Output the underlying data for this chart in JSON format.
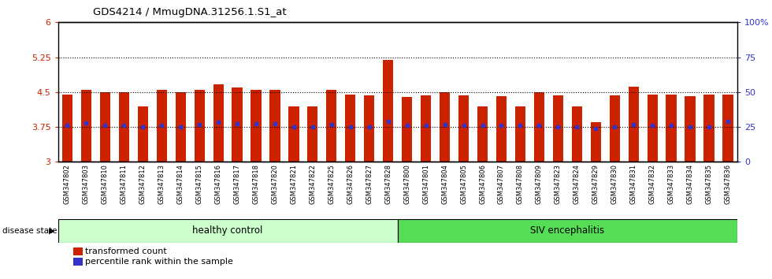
{
  "title": "GDS4214 / MmugDNA.31256.1.S1_at",
  "samples": [
    "GSM347802",
    "GSM347803",
    "GSM347810",
    "GSM347811",
    "GSM347812",
    "GSM347813",
    "GSM347814",
    "GSM347815",
    "GSM347816",
    "GSM347817",
    "GSM347818",
    "GSM347820",
    "GSM347821",
    "GSM347822",
    "GSM347825",
    "GSM347826",
    "GSM347827",
    "GSM347828",
    "GSM347800",
    "GSM347801",
    "GSM347804",
    "GSM347805",
    "GSM347806",
    "GSM347807",
    "GSM347808",
    "GSM347809",
    "GSM347823",
    "GSM347824",
    "GSM347829",
    "GSM347830",
    "GSM347831",
    "GSM347832",
    "GSM347833",
    "GSM347834",
    "GSM347835",
    "GSM347836"
  ],
  "bar_heights": [
    4.45,
    4.55,
    4.5,
    4.5,
    4.2,
    4.55,
    4.5,
    4.55,
    4.67,
    4.6,
    4.55,
    4.55,
    4.2,
    4.2,
    4.55,
    4.45,
    4.43,
    5.2,
    4.4,
    4.43,
    4.5,
    4.43,
    4.2,
    4.42,
    4.2,
    4.5,
    4.43,
    4.2,
    3.85,
    4.43,
    4.62,
    4.45,
    4.45,
    4.42,
    4.45,
    4.45
  ],
  "percentile_values": [
    3.78,
    3.83,
    3.78,
    3.78,
    3.75,
    3.78,
    3.75,
    3.8,
    3.85,
    3.82,
    3.82,
    3.82,
    3.75,
    3.75,
    3.8,
    3.75,
    3.75,
    3.87,
    3.78,
    3.78,
    3.8,
    3.78,
    3.78,
    3.78,
    3.78,
    3.78,
    3.75,
    3.75,
    3.72,
    3.75,
    3.8,
    3.78,
    3.78,
    3.75,
    3.75,
    3.87
  ],
  "healthy_count": 18,
  "bar_color": "#cc2200",
  "percentile_color": "#3333cc",
  "bar_bottom": 3.0,
  "ylim_left": [
    3.0,
    6.0
  ],
  "ylim_right": [
    0,
    100
  ],
  "yticks_left": [
    3.0,
    3.75,
    4.5,
    5.25,
    6.0
  ],
  "ytick_labels_left": [
    "3",
    "3.75",
    "4.5",
    "5.25",
    "6"
  ],
  "yticks_right": [
    0,
    25,
    50,
    75,
    100
  ],
  "ytick_labels_right": [
    "0",
    "25",
    "50",
    "75",
    "100%"
  ],
  "hlines": [
    3.75,
    4.5,
    5.25
  ],
  "healthy_label": "healthy control",
  "siv_label": "SIV encephalitis",
  "disease_state_label": "disease state",
  "legend_bar_label": "transformed count",
  "legend_percentile_label": "percentile rank within the sample",
  "healthy_color": "#ccffcc",
  "siv_color": "#55dd55",
  "plot_bg": "#ffffff"
}
